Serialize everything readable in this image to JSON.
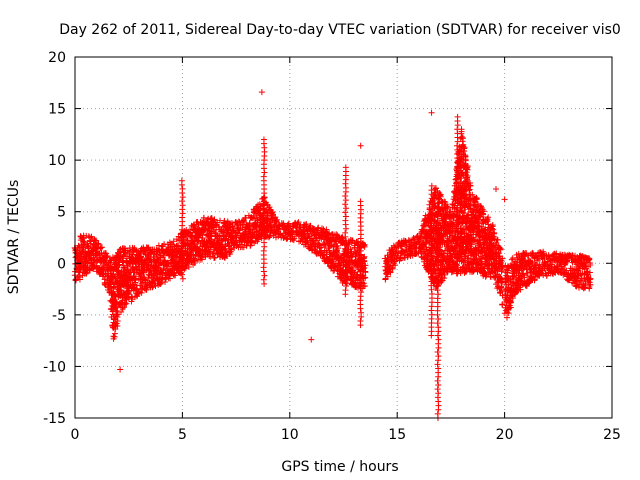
{
  "chart_data": {
    "type": "scatter",
    "title": "Day 262 of 2011, Sidereal Day-to-day VTEC variation (SDTVAR) for receiver vis0",
    "xlabel": "GPS time / hours",
    "ylabel": "SDTVAR / TECUs",
    "xlim": [
      0,
      25
    ],
    "ylim": [
      -15,
      20
    ],
    "xticks": [
      0,
      5,
      10,
      15,
      20,
      25
    ],
    "yticks": [
      -15,
      -10,
      -5,
      0,
      5,
      10,
      15,
      20
    ],
    "xtick_labels": [
      "0",
      "5",
      "10",
      "15",
      "20",
      "25"
    ],
    "ytick_labels": [
      "-15",
      "-10",
      "-5",
      "0",
      "5",
      "10",
      "15",
      "20"
    ],
    "grid": true,
    "marker": "+",
    "color": "#ff0000",
    "band": [
      {
        "x": 0.0,
        "lo": -1.8,
        "hi": 1.5
      },
      {
        "x": 0.3,
        "lo": -1.5,
        "hi": 2.8
      },
      {
        "x": 0.8,
        "lo": -0.5,
        "hi": 2.6
      },
      {
        "x": 1.2,
        "lo": -1.2,
        "hi": 1.8
      },
      {
        "x": 1.6,
        "lo": -3.0,
        "hi": 0.5
      },
      {
        "x": 1.8,
        "lo": -7.5,
        "hi": 1.0
      },
      {
        "x": 2.2,
        "lo": -4.5,
        "hi": 1.5
      },
      {
        "x": 3.0,
        "lo": -3.0,
        "hi": 1.5
      },
      {
        "x": 4.0,
        "lo": -2.0,
        "hi": 1.8
      },
      {
        "x": 5.0,
        "lo": -1.0,
        "hi": 3.0
      },
      {
        "x": 6.0,
        "lo": 0.5,
        "hi": 4.5
      },
      {
        "x": 7.0,
        "lo": 0.5,
        "hi": 4.2
      },
      {
        "x": 7.5,
        "lo": 1.5,
        "hi": 4.0
      },
      {
        "x": 8.0,
        "lo": 1.5,
        "hi": 4.5
      },
      {
        "x": 8.8,
        "lo": 2.5,
        "hi": 6.5
      },
      {
        "x": 9.5,
        "lo": 2.5,
        "hi": 4.0
      },
      {
        "x": 10.5,
        "lo": 2.0,
        "hi": 4.0
      },
      {
        "x": 11.5,
        "lo": 0.5,
        "hi": 3.5
      },
      {
        "x": 12.5,
        "lo": -2.0,
        "hi": 2.5
      },
      {
        "x": 13.4,
        "lo": -2.5,
        "hi": 2.0
      },
      {
        "x": 14.2,
        "lo": -2.5,
        "hi": 0.5
      },
      {
        "x": 15.0,
        "lo": 0.0,
        "hi": 2.0
      },
      {
        "x": 16.0,
        "lo": 1.0,
        "hi": 2.8
      },
      {
        "x": 16.8,
        "lo": -2.5,
        "hi": 7.5
      },
      {
        "x": 17.5,
        "lo": -1.0,
        "hi": 5.0
      },
      {
        "x": 18.0,
        "lo": -1.0,
        "hi": 13.0
      },
      {
        "x": 18.5,
        "lo": -1.0,
        "hi": 7.0
      },
      {
        "x": 19.5,
        "lo": -1.5,
        "hi": 3.5
      },
      {
        "x": 20.1,
        "lo": -5.5,
        "hi": -0.5
      },
      {
        "x": 20.5,
        "lo": -3.0,
        "hi": 1.0
      },
      {
        "x": 21.5,
        "lo": -1.5,
        "hi": 1.2
      },
      {
        "x": 22.5,
        "lo": -1.0,
        "hi": 1.0
      },
      {
        "x": 23.5,
        "lo": -2.5,
        "hi": 0.8
      },
      {
        "x": 24.0,
        "lo": -2.5,
        "hi": 0.5
      }
    ],
    "gaps": [
      [
        13.5,
        14.4
      ],
      [
        19.9,
        20.0
      ]
    ],
    "spikes": [
      {
        "x": 5.0,
        "lo": -1.5,
        "hi": 8.0
      },
      {
        "x": 8.8,
        "lo": -2.0,
        "hi": 12.0
      },
      {
        "x": 12.6,
        "lo": -3.0,
        "hi": 9.3
      },
      {
        "x": 13.3,
        "lo": -6.0,
        "hi": 6.0
      },
      {
        "x": 16.6,
        "lo": -7.0,
        "hi": 7.5
      },
      {
        "x": 16.9,
        "lo": -15.0,
        "hi": 7.0
      },
      {
        "x": 17.8,
        "lo": -1.0,
        "hi": 14.2
      }
    ],
    "outliers": [
      {
        "x": 2.1,
        "y": -10.3
      },
      {
        "x": 8.7,
        "y": 16.6
      },
      {
        "x": 11.0,
        "y": -7.4
      },
      {
        "x": 13.3,
        "y": 11.4
      },
      {
        "x": 16.6,
        "y": 14.6
      },
      {
        "x": 19.6,
        "y": 7.2
      },
      {
        "x": 20.0,
        "y": 6.2
      }
    ]
  }
}
